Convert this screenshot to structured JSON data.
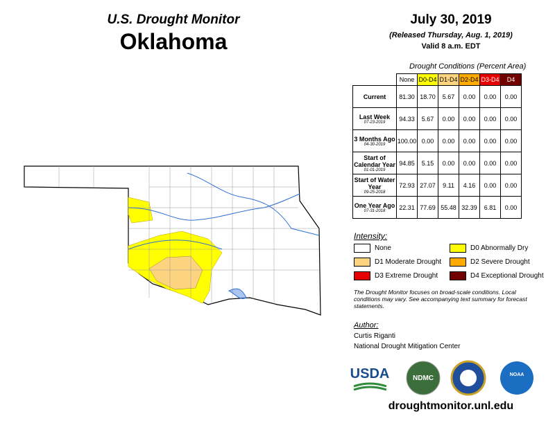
{
  "header": {
    "title": "U.S. Drought Monitor",
    "state": "Oklahoma"
  },
  "date": {
    "date": "July 30, 2019",
    "released": "(Released Thursday, Aug. 1, 2019)",
    "valid": "Valid 8 a.m. EDT"
  },
  "table": {
    "caption": "Drought Conditions (Percent Area)",
    "columns": [
      "None",
      "D0-D4",
      "D1-D4",
      "D2-D4",
      "D3-D4",
      "D4"
    ],
    "rows": [
      {
        "label": "Current",
        "values": [
          "81.30",
          "18.70",
          "5.67",
          "0.00",
          "0.00",
          "0.00"
        ]
      },
      {
        "label": "Last Week",
        "date": "07-23-2019",
        "values": [
          "94.33",
          "5.67",
          "0.00",
          "0.00",
          "0.00",
          "0.00"
        ]
      },
      {
        "label": "3 Months Ago",
        "date": "04-30-2019",
        "values": [
          "100.00",
          "0.00",
          "0.00",
          "0.00",
          "0.00",
          "0.00"
        ]
      },
      {
        "label": "Start of Calendar Year",
        "date": "01-01-2019",
        "values": [
          "94.85",
          "5.15",
          "0.00",
          "0.00",
          "0.00",
          "0.00"
        ]
      },
      {
        "label": "Start of Water Year",
        "date": "09-25-2018",
        "values": [
          "72.93",
          "27.07",
          "9.11",
          "4.16",
          "0.00",
          "0.00"
        ]
      },
      {
        "label": "One Year Ago",
        "date": "07-31-2018",
        "values": [
          "22.31",
          "77.69",
          "55.48",
          "32.39",
          "6.81",
          "0.00"
        ]
      }
    ]
  },
  "legend": {
    "title": "Intensity:",
    "items": [
      {
        "label": "None",
        "color": "#ffffff"
      },
      {
        "label": "D0 Abnormally Dry",
        "color": "#ffff00"
      },
      {
        "label": "D1 Moderate Drought",
        "color": "#fcd37f"
      },
      {
        "label": "D2 Severe Drought",
        "color": "#ffaa00"
      },
      {
        "label": "D3 Extreme Drought",
        "color": "#e60000"
      },
      {
        "label": "D4 Exceptional Drought",
        "color": "#730000"
      }
    ]
  },
  "note": "The Drought Monitor focuses on broad-scale conditions. Local conditions may vary. See accompanying text summary for forecast statements.",
  "author": {
    "title": "Author:",
    "name": "Curtis Riganti",
    "org": "National Drought Mitigation Center"
  },
  "logos": {
    "usda": "USDA",
    "ndmc": "NDMC",
    "noaa": "NOAA"
  },
  "url": "droughtmonitor.unl.edu"
}
